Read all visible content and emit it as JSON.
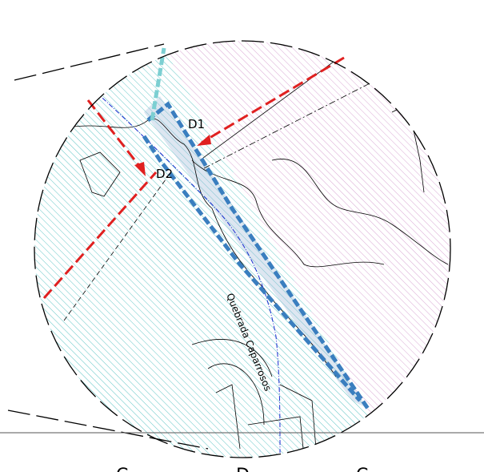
{
  "labels": {
    "d1": "D1",
    "d2": "D2",
    "stream": "Quebrada Caparrosos"
  },
  "bottom_labels": [
    "C",
    "D",
    "C"
  ]
}
